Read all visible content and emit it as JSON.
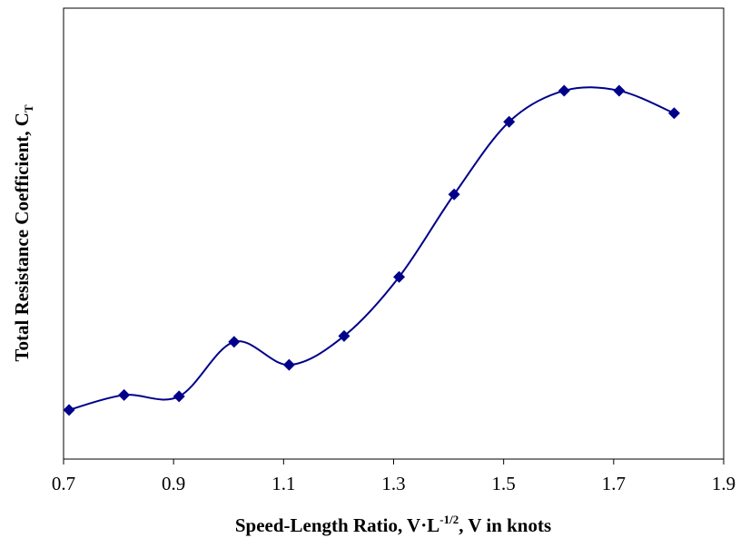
{
  "chart_data": {
    "type": "line",
    "title": "",
    "xlabel": {
      "main": "Speed-Length Ratio, V·L",
      "sup": "-1/2",
      "rest": ", V in knots"
    },
    "ylabel": {
      "main": "Total Resistance Coefficient, C",
      "sub": "T"
    },
    "xlim": [
      0.7,
      1.9
    ],
    "ylim": [
      0,
      1
    ],
    "x_ticks": [
      "0.7",
      "0.9",
      "1.1",
      "1.3",
      "1.5",
      "1.7",
      "1.9"
    ],
    "y_ticks_shown": false,
    "grid": false,
    "legend": "none",
    "series": [
      {
        "x": [
          0.71,
          0.81,
          0.91,
          1.01,
          1.11,
          1.21,
          1.31,
          1.41,
          1.51,
          1.61,
          1.71,
          1.81
        ],
        "y": [
          0.109,
          0.142,
          0.139,
          0.26,
          0.209,
          0.273,
          0.404,
          0.587,
          0.748,
          0.817,
          0.817,
          0.767
        ],
        "marker": "diamond",
        "smooth": true
      }
    ],
    "colors": {
      "series": "#00008B",
      "axis": "#000000"
    }
  }
}
